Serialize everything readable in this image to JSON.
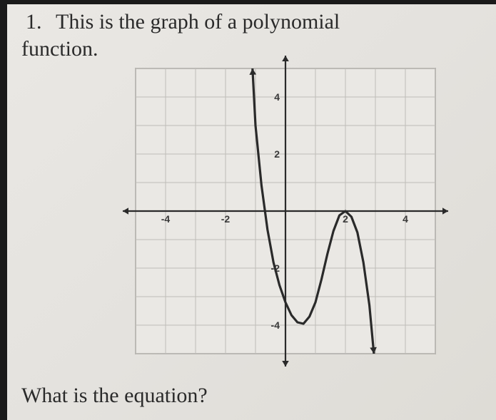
{
  "question": {
    "number": "1.",
    "line1": "This is the graph of a polynomial",
    "line2": "function.",
    "prompt": "What is the equation?"
  },
  "chart": {
    "type": "line",
    "xlim": [
      -5,
      5
    ],
    "ylim": [
      -5,
      5
    ],
    "xtick_step": 1,
    "ytick_step": 1,
    "xtick_labels": [
      {
        "x": -4,
        "text": "-4"
      },
      {
        "x": -2,
        "text": "-2"
      },
      {
        "x": 2,
        "text": "2"
      },
      {
        "x": 4,
        "text": "4"
      }
    ],
    "ytick_labels": [
      {
        "y": 4,
        "text": "4"
      },
      {
        "y": 2,
        "text": "2"
      },
      {
        "y": -2,
        "text": "-2"
      },
      {
        "y": -4,
        "text": "-4"
      }
    ],
    "background_color": "#eae8e4",
    "grid_color": "#bfbdb8",
    "grid_border_color": "#8a8884",
    "axis_color": "#2a2a2a",
    "tick_label_color": "#3a3a3a",
    "tick_label_fontsize": 14,
    "curve_color": "#2a2a2a",
    "curve_width": 3.2,
    "curve_points": [
      {
        "x": -1.1,
        "y": 5
      },
      {
        "x": -1.0,
        "y": 3.0
      },
      {
        "x": -0.8,
        "y": 0.9
      },
      {
        "x": -0.6,
        "y": -0.65
      },
      {
        "x": -0.4,
        "y": -1.8
      },
      {
        "x": -0.2,
        "y": -2.6
      },
      {
        "x": 0.0,
        "y": -3.2
      },
      {
        "x": 0.2,
        "y": -3.65
      },
      {
        "x": 0.4,
        "y": -3.9
      },
      {
        "x": 0.6,
        "y": -3.95
      },
      {
        "x": 0.8,
        "y": -3.7
      },
      {
        "x": 1.0,
        "y": -3.2
      },
      {
        "x": 1.2,
        "y": -2.4
      },
      {
        "x": 1.4,
        "y": -1.5
      },
      {
        "x": 1.6,
        "y": -0.7
      },
      {
        "x": 1.8,
        "y": -0.15
      },
      {
        "x": 2.0,
        "y": 0.0
      },
      {
        "x": 2.2,
        "y": -0.2
      },
      {
        "x": 2.4,
        "y": -0.75
      },
      {
        "x": 2.6,
        "y": -1.8
      },
      {
        "x": 2.8,
        "y": -3.3
      },
      {
        "x": 2.95,
        "y": -5
      }
    ],
    "arrow_size": 8
  }
}
